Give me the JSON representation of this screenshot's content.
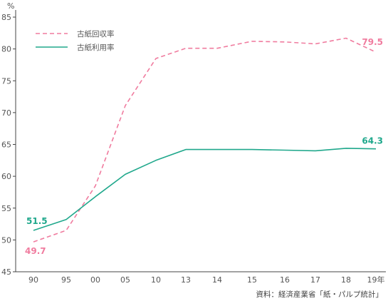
{
  "chart_data": {
    "type": "line",
    "unit": "%",
    "categories": [
      "90",
      "95",
      "00",
      "05",
      "10",
      "13",
      "14",
      "15",
      "16",
      "17",
      "18",
      "19年"
    ],
    "ylim": [
      45,
      85
    ],
    "yticks": [
      45,
      50,
      55,
      60,
      65,
      70,
      75,
      80,
      85
    ],
    "grid": false,
    "legend_position": "top-left",
    "series": [
      {
        "name": "古紙回収率",
        "color": "#f07c9f",
        "style": "dashed",
        "values": [
          49.7,
          51.5,
          58.5,
          71.1,
          78.5,
          80.1,
          80.1,
          81.2,
          81.1,
          80.8,
          81.7,
          79.5
        ]
      },
      {
        "name": "古紙利用率",
        "color": "#20a88c",
        "style": "solid",
        "values": [
          51.5,
          53.2,
          56.8,
          60.3,
          62.5,
          64.2,
          64.2,
          64.2,
          64.1,
          64.0,
          64.4,
          64.3
        ]
      }
    ],
    "annotations": [
      {
        "text": "51.5",
        "series": 1,
        "index": 0,
        "color": "#20a88c"
      },
      {
        "text": "49.7",
        "series": 0,
        "index": 0,
        "color": "#f07c9f"
      },
      {
        "text": "79.5",
        "series": 0,
        "index": 11,
        "color": "#f07c9f"
      },
      {
        "text": "64.3",
        "series": 1,
        "index": 11,
        "color": "#20a88c"
      }
    ],
    "source": "資料：経済産業省「紙・パルプ統計」",
    "axis_color": "#444444"
  }
}
